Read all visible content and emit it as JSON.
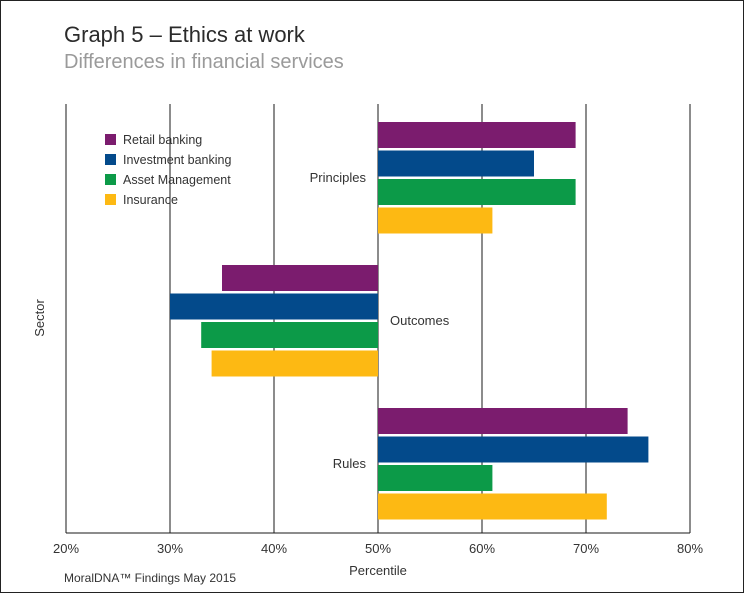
{
  "header": {
    "title": "Graph 5 – Ethics at work",
    "subtitle": "Differences in financial services"
  },
  "footer": {
    "source": "MoralDNA™ Findings May 2015"
  },
  "chart_data": {
    "type": "bar",
    "orientation": "horizontal",
    "title": "Graph 5 – Ethics at work",
    "subtitle": "Differences in financial services",
    "xlabel": "Percentile",
    "ylabel": "Sector",
    "xlim": [
      20,
      80
    ],
    "baseline": 50,
    "xticks": [
      "20%",
      "30%",
      "40%",
      "50%",
      "60%",
      "70%",
      "80%"
    ],
    "xtick_values": [
      20,
      30,
      40,
      50,
      60,
      70,
      80
    ],
    "grid": "vertical",
    "legend_position": "top-left",
    "categories": [
      "Principles",
      "Outcomes",
      "Rules"
    ],
    "series": [
      {
        "name": "Retail banking",
        "color": "#7b1c6e",
        "values": [
          69,
          35,
          74
        ]
      },
      {
        "name": "Investment banking",
        "color": "#034a8b",
        "values": [
          65,
          30,
          76
        ]
      },
      {
        "name": "Asset Management",
        "color": "#0c9a48",
        "values": [
          69,
          33,
          61
        ]
      },
      {
        "name": "Insurance",
        "color": "#fdb913",
        "values": [
          61,
          34,
          72
        ]
      }
    ]
  }
}
